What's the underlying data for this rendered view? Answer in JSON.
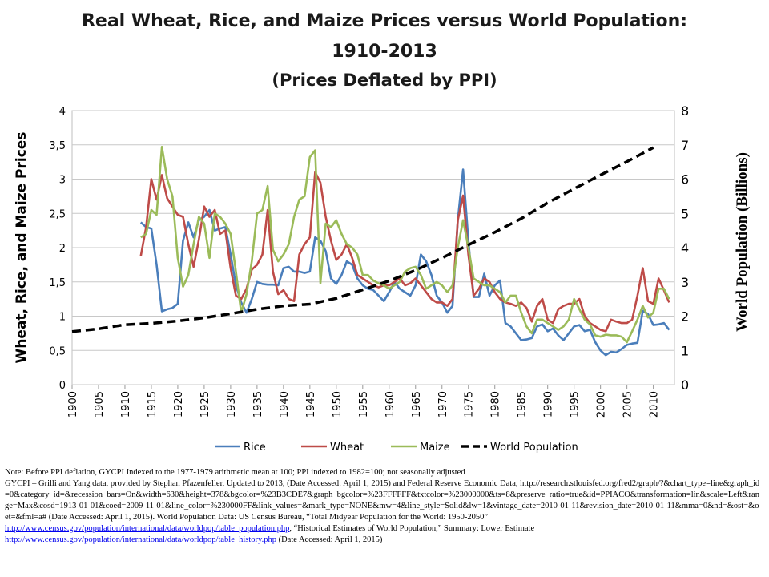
{
  "title": {
    "line1": "Real Wheat, Rice, and Maize Prices versus World Population:",
    "line2": "1910-2013",
    "line3": "(Prices Deflated by PPI)"
  },
  "chart_data": {
    "type": "line",
    "ylabel": "Wheat, Rice, and Maize Prices",
    "y2label": "World Population (Billions)",
    "xlim": [
      1900,
      2014
    ],
    "ylim": [
      0,
      4
    ],
    "y2lim": [
      0,
      8
    ],
    "x_ticks": [
      "1900",
      "1905",
      "1910",
      "1915",
      "1920",
      "1925",
      "1930",
      "1935",
      "1940",
      "1945",
      "1950",
      "1955",
      "1960",
      "1965",
      "1970",
      "1975",
      "1980",
      "1985",
      "1990",
      "1995",
      "2000",
      "2005",
      "2010"
    ],
    "y_ticks": [
      "0",
      "0,5",
      "1",
      "1,5",
      "2",
      "2,5",
      "3",
      "3,5",
      "4"
    ],
    "y2_ticks": [
      "0",
      "1",
      "2",
      "3",
      "4",
      "5",
      "6",
      "7",
      "8"
    ],
    "legend_position": "bottom",
    "series": [
      {
        "name": "Rice",
        "axis": "left",
        "color": "#4a7ebb",
        "style": "solid",
        "x": [
          1913,
          1914,
          1915,
          1916,
          1917,
          1918,
          1919,
          1920,
          1921,
          1922,
          1923,
          1924,
          1925,
          1926,
          1927,
          1928,
          1929,
          1930,
          1931,
          1932,
          1933,
          1934,
          1935,
          1936,
          1937,
          1938,
          1939,
          1940,
          1941,
          1942,
          1943,
          1944,
          1945,
          1946,
          1947,
          1948,
          1949,
          1950,
          1951,
          1952,
          1953,
          1954,
          1955,
          1956,
          1957,
          1958,
          1959,
          1960,
          1961,
          1962,
          1963,
          1964,
          1965,
          1966,
          1967,
          1968,
          1969,
          1970,
          1971,
          1972,
          1973,
          1974,
          1975,
          1976,
          1977,
          1978,
          1979,
          1980,
          1981,
          1982,
          1983,
          1984,
          1985,
          1986,
          1987,
          1988,
          1989,
          1990,
          1991,
          1992,
          1993,
          1994,
          1995,
          1996,
          1997,
          1998,
          1999,
          2000,
          2001,
          2002,
          2003,
          2004,
          2005,
          2006,
          2007,
          2008,
          2009,
          2010,
          2011,
          2012,
          2013
        ],
        "values": [
          2.37,
          2.3,
          2.28,
          1.75,
          1.07,
          1.1,
          1.12,
          1.18,
          2.1,
          2.37,
          2.15,
          2.4,
          2.45,
          2.55,
          2.25,
          2.28,
          2.3,
          1.9,
          1.45,
          1.2,
          1.05,
          1.25,
          1.5,
          1.47,
          1.46,
          1.46,
          1.45,
          1.7,
          1.72,
          1.65,
          1.65,
          1.63,
          1.65,
          2.15,
          2.1,
          1.95,
          1.55,
          1.47,
          1.6,
          1.8,
          1.75,
          1.55,
          1.45,
          1.4,
          1.38,
          1.3,
          1.22,
          1.35,
          1.5,
          1.4,
          1.35,
          1.3,
          1.45,
          1.9,
          1.8,
          1.6,
          1.3,
          1.2,
          1.05,
          1.15,
          2.4,
          3.14,
          2.1,
          1.28,
          1.28,
          1.62,
          1.3,
          1.45,
          1.52,
          0.9,
          0.85,
          0.75,
          0.65,
          0.66,
          0.68,
          0.85,
          0.88,
          0.78,
          0.82,
          0.72,
          0.65,
          0.75,
          0.85,
          0.87,
          0.78,
          0.8,
          0.62,
          0.5,
          0.43,
          0.48,
          0.47,
          0.52,
          0.58,
          0.6,
          0.61,
          1.08,
          1.03,
          0.87,
          0.88,
          0.9,
          0.8
        ]
      },
      {
        "name": "Wheat",
        "axis": "left",
        "color": "#be4b48",
        "style": "solid",
        "x": [
          1913,
          1914,
          1915,
          1916,
          1917,
          1918,
          1919,
          1920,
          1921,
          1922,
          1923,
          1924,
          1925,
          1926,
          1927,
          1928,
          1929,
          1930,
          1931,
          1932,
          1933,
          1934,
          1935,
          1936,
          1937,
          1938,
          1939,
          1940,
          1941,
          1942,
          1943,
          1944,
          1945,
          1946,
          1947,
          1948,
          1949,
          1950,
          1951,
          1952,
          1953,
          1954,
          1955,
          1956,
          1957,
          1958,
          1959,
          1960,
          1961,
          1962,
          1963,
          1964,
          1965,
          1966,
          1967,
          1968,
          1969,
          1970,
          1971,
          1972,
          1973,
          1974,
          1975,
          1976,
          1977,
          1978,
          1979,
          1980,
          1981,
          1982,
          1983,
          1984,
          1985,
          1986,
          1987,
          1988,
          1989,
          1990,
          1991,
          1992,
          1993,
          1994,
          1995,
          1996,
          1997,
          1998,
          1999,
          2000,
          2001,
          2002,
          2003,
          2004,
          2005,
          2006,
          2007,
          2008,
          2009,
          2010,
          2011,
          2012,
          2013
        ],
        "values": [
          1.88,
          2.3,
          3.0,
          2.7,
          3.06,
          2.72,
          2.6,
          2.48,
          2.45,
          2.05,
          1.72,
          2.12,
          2.6,
          2.45,
          2.55,
          2.2,
          2.25,
          1.7,
          1.3,
          1.25,
          1.4,
          1.68,
          1.75,
          1.9,
          2.55,
          1.65,
          1.32,
          1.38,
          1.25,
          1.22,
          1.9,
          2.05,
          2.15,
          3.1,
          2.95,
          2.45,
          2.1,
          1.82,
          1.9,
          2.05,
          1.85,
          1.6,
          1.55,
          1.5,
          1.45,
          1.42,
          1.45,
          1.45,
          1.5,
          1.55,
          1.45,
          1.48,
          1.55,
          1.45,
          1.35,
          1.25,
          1.2,
          1.2,
          1.15,
          1.25,
          2.4,
          2.76,
          1.9,
          1.3,
          1.4,
          1.55,
          1.5,
          1.35,
          1.25,
          1.2,
          1.18,
          1.15,
          1.2,
          1.12,
          0.92,
          1.15,
          1.25,
          0.95,
          0.9,
          1.1,
          1.15,
          1.18,
          1.18,
          1.25,
          1.0,
          0.9,
          0.85,
          0.8,
          0.78,
          0.95,
          0.92,
          0.9,
          0.9,
          0.95,
          1.3,
          1.7,
          1.22,
          1.18,
          1.55,
          1.38,
          1.2
        ]
      },
      {
        "name": "Maize",
        "axis": "left",
        "color": "#9bbb59",
        "style": "solid",
        "x": [
          1913,
          1914,
          1915,
          1916,
          1917,
          1918,
          1919,
          1920,
          1921,
          1922,
          1923,
          1924,
          1925,
          1926,
          1927,
          1928,
          1929,
          1930,
          1931,
          1932,
          1933,
          1934,
          1935,
          1936,
          1937,
          1938,
          1939,
          1940,
          1941,
          1942,
          1943,
          1944,
          1945,
          1946,
          1947,
          1948,
          1949,
          1950,
          1951,
          1952,
          1953,
          1954,
          1955,
          1956,
          1957,
          1958,
          1959,
          1960,
          1961,
          1962,
          1963,
          1964,
          1965,
          1966,
          1967,
          1968,
          1969,
          1970,
          1971,
          1972,
          1973,
          1974,
          1975,
          1976,
          1977,
          1978,
          1979,
          1980,
          1981,
          1982,
          1983,
          1984,
          1985,
          1986,
          1987,
          1988,
          1989,
          1990,
          1991,
          1992,
          1993,
          1994,
          1995,
          1996,
          1997,
          1998,
          1999,
          2000,
          2001,
          2002,
          2003,
          2004,
          2005,
          2006,
          2007,
          2008,
          2009,
          2010,
          2011,
          2012,
          2013
        ],
        "values": [
          2.15,
          2.2,
          2.55,
          2.48,
          3.47,
          3.0,
          2.75,
          1.85,
          1.43,
          1.6,
          2.05,
          2.45,
          2.35,
          1.85,
          2.5,
          2.45,
          2.35,
          2.2,
          1.65,
          1.05,
          1.32,
          1.8,
          2.5,
          2.55,
          2.9,
          1.97,
          1.8,
          1.9,
          2.05,
          2.45,
          2.7,
          2.75,
          3.32,
          3.42,
          1.48,
          2.35,
          2.3,
          2.4,
          2.2,
          2.05,
          2.0,
          1.9,
          1.6,
          1.6,
          1.52,
          1.48,
          1.45,
          1.4,
          1.45,
          1.5,
          1.65,
          1.7,
          1.72,
          1.6,
          1.4,
          1.45,
          1.5,
          1.45,
          1.35,
          1.45,
          2.0,
          2.4,
          2.0,
          1.55,
          1.5,
          1.45,
          1.45,
          1.4,
          1.35,
          1.2,
          1.3,
          1.3,
          1.05,
          0.85,
          0.75,
          0.95,
          0.95,
          0.9,
          0.85,
          0.8,
          0.85,
          0.95,
          1.25,
          1.1,
          0.95,
          0.88,
          0.72,
          0.7,
          0.73,
          0.72,
          0.72,
          0.7,
          0.62,
          0.78,
          0.95,
          1.15,
          0.98,
          1.05,
          1.4,
          1.4,
          1.25
        ]
      },
      {
        "name": "World Population",
        "axis": "right",
        "color": "#000000",
        "style": "dashed",
        "x": [
          1900,
          1905,
          1910,
          1915,
          1920,
          1925,
          1930,
          1935,
          1940,
          1945,
          1950,
          1955,
          1960,
          1965,
          1970,
          1975,
          1980,
          1985,
          1990,
          1995,
          2000,
          2005,
          2010
        ],
        "values": [
          1.55,
          1.63,
          1.75,
          1.79,
          1.86,
          1.95,
          2.07,
          2.2,
          2.3,
          2.35,
          2.52,
          2.77,
          3.03,
          3.34,
          3.7,
          4.08,
          4.45,
          4.85,
          5.31,
          5.72,
          6.12,
          6.51,
          6.92
        ]
      }
    ]
  },
  "notes": {
    "line1": "Note: Before PPI deflation, GYCPI  Indexed to the 1977-1979 arithmetic mean at 100; PPI indexed to 1982=100; not seasonally adjusted",
    "line2": "GYCPI – Grilli  and Yang data, provided by Stephan Pfazenfeller, Updated to 2013, (Date Accessed:  April  1, 2015) and Federal Reserve Economic Data, http://research.stlouisfed.org/fred2/graph/?&chart_type=line&graph_id=0&category_id=&recession_bars=On&width=630&height=378&bgcolor=%23B3CDE7&graph_bgcolor=%23FFFFFF&txtcolor=%23000000&ts=8&preserve_ratio=true&id=PPIACO&transformation=lin&scale=Left&range=Max&cosd=1913-01-01&coed=2009-11-01&line_color=%230000FF&link_values=&mark_type=NONE&mw=4&line_style=Solid&lw=1&vintage_date=2010-01-11&revision_date=2010-01-11&mma=0&nd=&ost=&oet=&fml=a# (Date Accessed:  April  1, 2015). World Population Data: US Census Bureau, “Total Midyear Population for the World:  1950-2050”",
    "link1": "http://www.census.gov/population/international/data/worldpop/table_population.php",
    "line3_rest": ", “Historical Estimates of World Population,” Summary: Lower Estimate",
    "link2": "http://www.census.gov/population/international/data/worldpop/table_history.php",
    "line4_rest": " (Date Accessed:  April  1, 2015)"
  }
}
